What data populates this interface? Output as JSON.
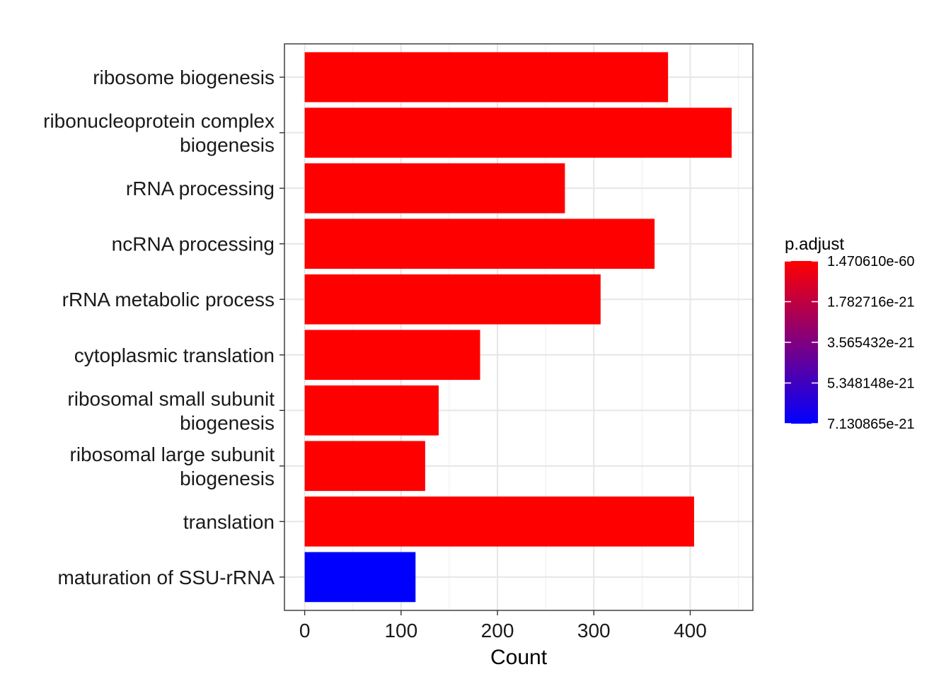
{
  "chart_data": {
    "type": "bar",
    "orientation": "horizontal",
    "categories": [
      "ribosome biogenesis",
      "ribonucleoprotein complex biogenesis",
      "rRNA processing",
      "ncRNA processing",
      "rRNA metabolic process",
      "cytoplasmic translation",
      "ribosomal small subunit biogenesis",
      "ribosomal large subunit biogenesis",
      "translation",
      "maturation of SSU-rRNA"
    ],
    "category_lines": [
      [
        "ribosome biogenesis"
      ],
      [
        "ribonucleoprotein complex",
        "biogenesis"
      ],
      [
        "rRNA processing"
      ],
      [
        "ncRNA processing"
      ],
      [
        "rRNA metabolic process"
      ],
      [
        "cytoplasmic translation"
      ],
      [
        "ribosomal small subunit",
        "biogenesis"
      ],
      [
        "ribosomal large subunit",
        "biogenesis"
      ],
      [
        "translation"
      ],
      [
        "maturation of SSU-rRNA"
      ]
    ],
    "values": [
      377,
      443,
      270,
      363,
      307,
      182,
      139,
      125,
      404,
      115
    ],
    "bar_colors": [
      "#ff0000",
      "#ff0000",
      "#ff0000",
      "#ff0000",
      "#ff0000",
      "#ff0000",
      "#ff0000",
      "#ff0000",
      "#ff0000",
      "#0000ff"
    ],
    "xlabel": "Count",
    "ylabel": "",
    "xlim": [
      -21,
      465
    ],
    "x_ticks": [
      0,
      100,
      200,
      300,
      400
    ],
    "x_tick_labels": [
      "0",
      "100",
      "200",
      "300",
      "400"
    ],
    "grid": true,
    "legend": {
      "title": "p.adjust",
      "position": "right",
      "labels": [
        "1.470610e-60",
        "1.782716e-21",
        "3.565432e-21",
        "5.348148e-21",
        "7.130865e-21"
      ],
      "color_low": "#ff0000",
      "color_high": "#0000ff"
    }
  }
}
